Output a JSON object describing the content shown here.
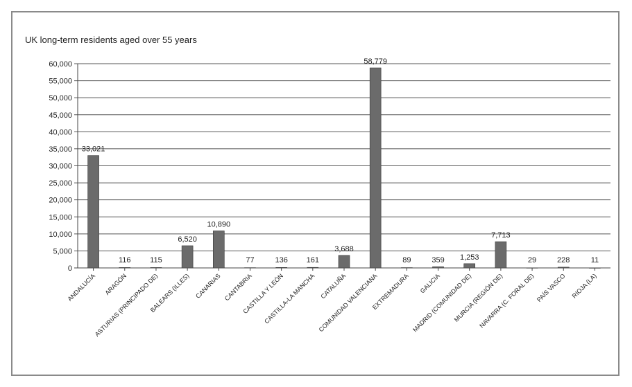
{
  "chart_data": {
    "type": "bar",
    "title": "UK long-term residents aged over 55 years",
    "xlabel": "",
    "ylabel": "",
    "ylim": [
      0,
      60000
    ],
    "yticks": [
      "0",
      "5,000",
      "10,000",
      "15,000",
      "20,000",
      "25,000",
      "30,000",
      "35,000",
      "40,000",
      "45,000",
      "50,000",
      "55,000",
      "60,000"
    ],
    "grid": true,
    "bar_color": "#6b6b6b",
    "categories": [
      "ANDALUCÍA",
      "ARAGÓN",
      "ASTURIAS (PRINCIPADO DE)",
      "BALEARS (ILLES)",
      "CANARIAS",
      "CANTABRIA",
      "CASTILLA Y LEÓN",
      "CASTILLA-LA MANCHA",
      "CATALUÑA",
      "COMUNIDAD VALENCIANA",
      "EXTREMADURA",
      "GALICIA",
      "MADRID (COMUNIDAD DE)",
      "MURCIA (REGIÓN DE)",
      "NAVARRA (C. FORAL DE)",
      "PAÍS VASCO",
      "RIOJA (LA)"
    ],
    "values": [
      33021,
      116,
      115,
      6520,
      10890,
      77,
      136,
      161,
      3688,
      58779,
      89,
      359,
      1253,
      7713,
      29,
      228,
      11
    ],
    "value_labels": [
      "33,021",
      "116",
      "115",
      "6,520",
      "10,890",
      "77",
      "136",
      "161",
      "3,688",
      "58,779",
      "89",
      "359",
      "1,253",
      "7,713",
      "29",
      "228",
      "11"
    ]
  }
}
